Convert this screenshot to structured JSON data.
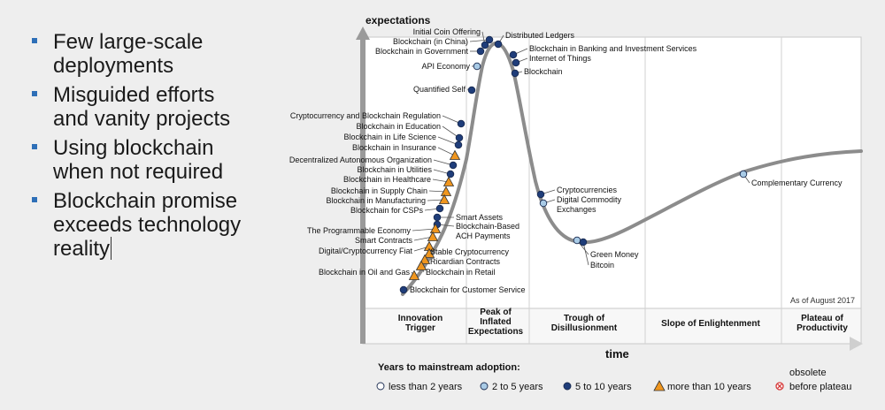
{
  "bullets": [
    {
      "l1": "Few large-scale",
      "l2": "deployments"
    },
    {
      "l1": "Misguided efforts",
      "l2": "and vanity projects"
    },
    {
      "l1": "Using blockchain",
      "l2": "when not required"
    },
    {
      "l1": "Blockchain  promise",
      "l2": "exceeds technology",
      "l3": "reality"
    }
  ],
  "chart_data": {
    "type": "line",
    "title": "",
    "ylabel": "expectations",
    "xlabel": "time",
    "note": "As of August 2017",
    "phases": [
      {
        "lines": [
          "Innovation",
          "Trigger"
        ]
      },
      {
        "lines": [
          "Peak of",
          "Inflated",
          "Expectations"
        ]
      },
      {
        "lines": [
          "Trough of",
          "Disillusionment"
        ]
      },
      {
        "lines": [
          "Slope of Enlightenment"
        ]
      },
      {
        "lines": [
          "Plateau of",
          "Productivity"
        ]
      }
    ],
    "legend_title": "Years to mainstream adoption:",
    "legend": [
      {
        "key": "lt2",
        "label": "less than 2 years"
      },
      {
        "key": "2to5",
        "label": "2 to 5 years"
      },
      {
        "key": "5to10",
        "label": "5 to 10 years"
      },
      {
        "key": "gt10",
        "label": "more than 10 years"
      },
      {
        "key": "obs",
        "label1": "obsolete",
        "label2": "before plateau"
      }
    ],
    "colors": {
      "curve": "#8c8c8c",
      "lt2": "#ffffff",
      "2to5": "#a9cbe6",
      "5to10": "#1f3d7a",
      "gt10": "#f0961e",
      "obs": "#d63a3a"
    },
    "technologies": [
      {
        "name": "Initial Coin Offering",
        "category": "5to10"
      },
      {
        "name": "Blockchain (in China)",
        "category": "5to10"
      },
      {
        "name": "Blockchain in Government",
        "category": "5to10"
      },
      {
        "name": "Distributed Ledgers",
        "category": "5to10"
      },
      {
        "name": "Blockchain in Banking and Investment Services",
        "category": "5to10"
      },
      {
        "name": "Internet of Things",
        "category": "5to10"
      },
      {
        "name": "Blockchain",
        "category": "5to10"
      },
      {
        "name": "API Economy",
        "category": "2to5"
      },
      {
        "name": "Quantified Self",
        "category": "5to10"
      },
      {
        "name": "Cryptocurrency and Blockchain Regulation",
        "category": "5to10"
      },
      {
        "name": "Blockchain in Education",
        "category": "5to10"
      },
      {
        "name": "Blockchain in Life Science",
        "category": "5to10"
      },
      {
        "name": "Blockchain in Insurance",
        "category": "gt10"
      },
      {
        "name": "Decentralized Autonomous Organization",
        "category": "5to10"
      },
      {
        "name": "Blockchain in Utilities",
        "category": "5to10"
      },
      {
        "name": "Blockchain in Healthcare",
        "category": "gt10"
      },
      {
        "name": "Blockchain in Supply Chain",
        "category": "gt10"
      },
      {
        "name": "Blockchain in Manufacturing",
        "category": "gt10"
      },
      {
        "name": "Blockchain for CSPs",
        "category": "5to10"
      },
      {
        "name": "Smart Assets",
        "category": "5to10"
      },
      {
        "name": "Blockchain-Based ACH Payments",
        "category": "5to10"
      },
      {
        "name": "The Programmable Economy",
        "category": "gt10"
      },
      {
        "name": "Smart Contracts",
        "category": "gt10"
      },
      {
        "name": "Digital/Cryptocurrency Fiat",
        "category": "gt10"
      },
      {
        "name": "Stable Cryptocurrency",
        "category": "gt10"
      },
      {
        "name": "Ricardian Contracts",
        "category": "gt10"
      },
      {
        "name": "Blockchain in Retail",
        "category": "gt10"
      },
      {
        "name": "Blockchain in Oil and Gas",
        "category": "gt10"
      },
      {
        "name": "Blockchain for Customer Service",
        "category": "5to10"
      },
      {
        "name": "Cryptocurrencies",
        "category": "5to10"
      },
      {
        "name": "Digital Commodity Exchanges",
        "category": "2to5"
      },
      {
        "name": "Green Money",
        "category": "2to5"
      },
      {
        "name": "Bitcoin",
        "category": "5to10"
      },
      {
        "name": "Complementary Currency",
        "category": "2to5"
      }
    ]
  }
}
